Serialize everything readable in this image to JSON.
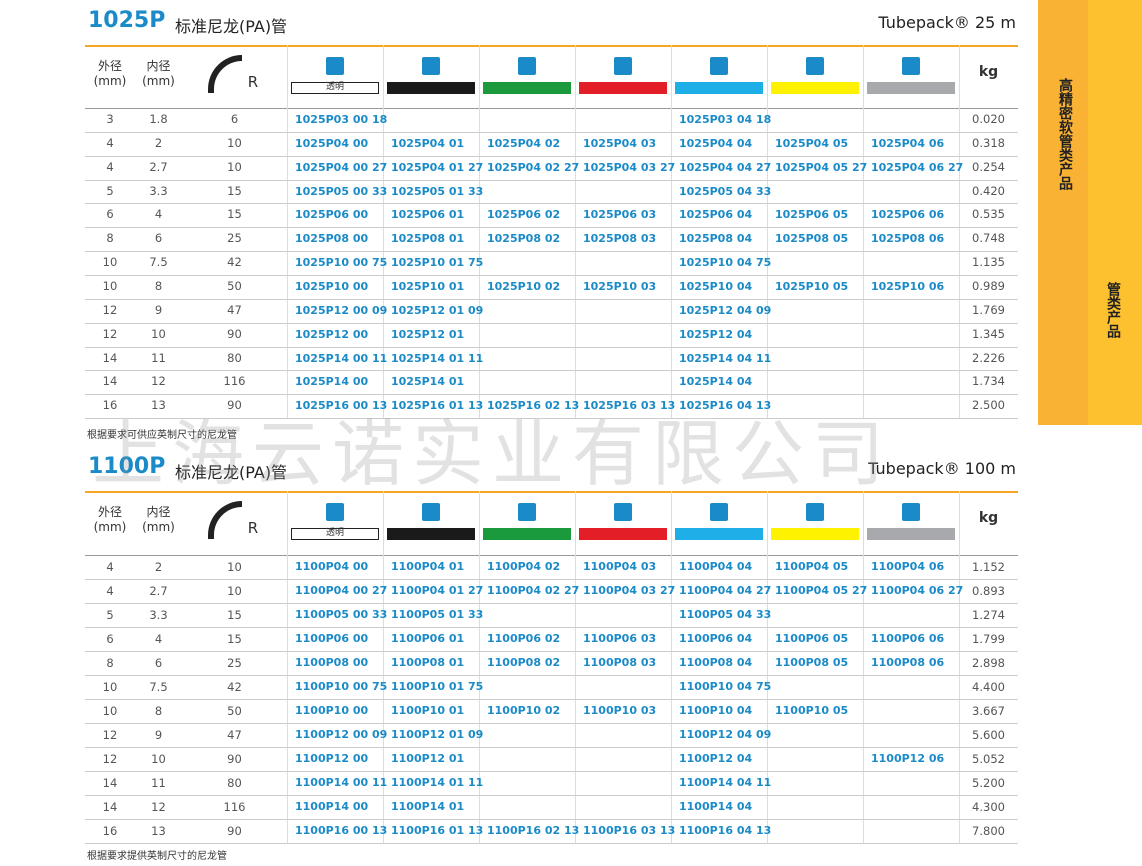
{
  "side_tab": {
    "main": "高精密软管类产品",
    "sub": "管类产品"
  },
  "watermark": "上海云诺实业有限公司",
  "sections": [
    {
      "code": "1025P",
      "title": "标准尼龙(PA)管",
      "pack": "Tubepack® 25 m",
      "headers": {
        "od": "外径",
        "od_unit": "(mm)",
        "id": "内径",
        "id_unit": "(mm)",
        "r": "R",
        "clear": "透明",
        "kg": "kg"
      },
      "rows": [
        [
          "3",
          "1.8",
          "6",
          "1025P03 00 18",
          null,
          null,
          null,
          "1025P03 04 18",
          null,
          null,
          "0.020"
        ],
        [
          "4",
          "2",
          "10",
          "1025P04 00",
          "1025P04 01",
          "1025P04 02",
          "1025P04 03",
          "1025P04 04",
          "1025P04 05",
          "1025P04 06",
          "0.318"
        ],
        [
          "4",
          "2.7",
          "10",
          "1025P04 00 27",
          "1025P04 01 27",
          "1025P04 02 27",
          "1025P04 03 27",
          "1025P04 04 27",
          "1025P04 05 27",
          "1025P04 06 27",
          "0.254"
        ],
        [
          "5",
          "3.3",
          "15",
          "1025P05 00 33",
          "1025P05 01 33",
          null,
          null,
          "1025P05 04 33",
          null,
          null,
          "0.420"
        ],
        [
          "6",
          "4",
          "15",
          "1025P06 00",
          "1025P06 01",
          "1025P06 02",
          "1025P06 03",
          "1025P06 04",
          "1025P06 05",
          "1025P06 06",
          "0.535"
        ],
        [
          "8",
          "6",
          "25",
          "1025P08 00",
          "1025P08 01",
          "1025P08 02",
          "1025P08 03",
          "1025P08 04",
          "1025P08 05",
          "1025P08 06",
          "0.748"
        ],
        [
          "10",
          "7.5",
          "42",
          "1025P10 00 75",
          "1025P10 01 75",
          null,
          null,
          "1025P10 04 75",
          null,
          null,
          "1.135"
        ],
        [
          "10",
          "8",
          "50",
          "1025P10 00",
          "1025P10 01",
          "1025P10 02",
          "1025P10 03",
          "1025P10 04",
          "1025P10 05",
          "1025P10 06",
          "0.989"
        ],
        [
          "12",
          "9",
          "47",
          "1025P12 00 09",
          "1025P12 01 09",
          null,
          null,
          "1025P12 04 09",
          null,
          null,
          "1.769"
        ],
        [
          "12",
          "10",
          "90",
          "1025P12 00",
          "1025P12 01",
          null,
          null,
          "1025P12 04",
          null,
          null,
          "1.345"
        ],
        [
          "14",
          "11",
          "80",
          "1025P14 00 11",
          "1025P14 01 11",
          null,
          null,
          "1025P14 04 11",
          null,
          null,
          "2.226"
        ],
        [
          "14",
          "12",
          "116",
          "1025P14 00",
          "1025P14 01",
          null,
          null,
          "1025P14 04",
          null,
          null,
          "1.734"
        ],
        [
          "16",
          "13",
          "90",
          "1025P16 00 13",
          "1025P16 01 13",
          "1025P16 02 13",
          "1025P16 03 13",
          "1025P16 04 13",
          null,
          null,
          "2.500"
        ]
      ],
      "note": "根据要求可供应英制尺寸的尼龙管"
    },
    {
      "code": "1100P",
      "title": "标准尼龙(PA)管",
      "pack": "Tubepack® 100 m",
      "headers": {
        "od": "外径",
        "od_unit": "(mm)",
        "id": "内径",
        "id_unit": "(mm)",
        "r": "R",
        "clear": "透明",
        "kg": "kg"
      },
      "rows": [
        [
          "4",
          "2",
          "10",
          "1100P04 00",
          "1100P04 01",
          "1100P04 02",
          "1100P04 03",
          "1100P04 04",
          "1100P04 05",
          "1100P04 06",
          "1.152"
        ],
        [
          "4",
          "2.7",
          "10",
          "1100P04 00 27",
          "1100P04 01 27",
          "1100P04 02 27",
          "1100P04 03 27",
          "1100P04 04 27",
          "1100P04 05 27",
          "1100P04 06 27",
          "0.893"
        ],
        [
          "5",
          "3.3",
          "15",
          "1100P05 00 33",
          "1100P05 01 33",
          null,
          null,
          "1100P05 04 33",
          null,
          null,
          "1.274"
        ],
        [
          "6",
          "4",
          "15",
          "1100P06 00",
          "1100P06 01",
          "1100P06 02",
          "1100P06 03",
          "1100P06 04",
          "1100P06 05",
          "1100P06 06",
          "1.799"
        ],
        [
          "8",
          "6",
          "25",
          "1100P08 00",
          "1100P08 01",
          "1100P08 02",
          "1100P08 03",
          "1100P08 04",
          "1100P08 05",
          "1100P08 06",
          "2.898"
        ],
        [
          "10",
          "7.5",
          "42",
          "1100P10 00 75",
          "1100P10 01 75",
          null,
          null,
          "1100P10 04 75",
          null,
          null,
          "4.400"
        ],
        [
          "10",
          "8",
          "50",
          "1100P10 00",
          "1100P10 01",
          "1100P10 02",
          "1100P10 03",
          "1100P10 04",
          "1100P10 05",
          null,
          "3.667"
        ],
        [
          "12",
          "9",
          "47",
          "1100P12 00 09",
          "1100P12 01 09",
          null,
          null,
          "1100P12 04 09",
          null,
          null,
          "5.600"
        ],
        [
          "12",
          "10",
          "90",
          "1100P12 00",
          "1100P12 01",
          null,
          null,
          "1100P12 04",
          null,
          "1100P12 06",
          "5.052"
        ],
        [
          "14",
          "11",
          "80",
          "1100P14 00 11",
          "1100P14 01 11",
          null,
          null,
          "1100P14 04 11",
          null,
          null,
          "5.200"
        ],
        [
          "14",
          "12",
          "116",
          "1100P14 00",
          "1100P14 01",
          null,
          null,
          "1100P14 04",
          null,
          null,
          "4.300"
        ],
        [
          "16",
          "13",
          "90",
          "1100P16 00 13",
          "1100P16 01 13",
          "1100P16 02 13",
          "1100P16 03 13",
          "1100P16 04 13",
          null,
          null,
          "7.800"
        ]
      ],
      "note": "根据要求提供英制尺寸的尼龙管"
    }
  ]
}
